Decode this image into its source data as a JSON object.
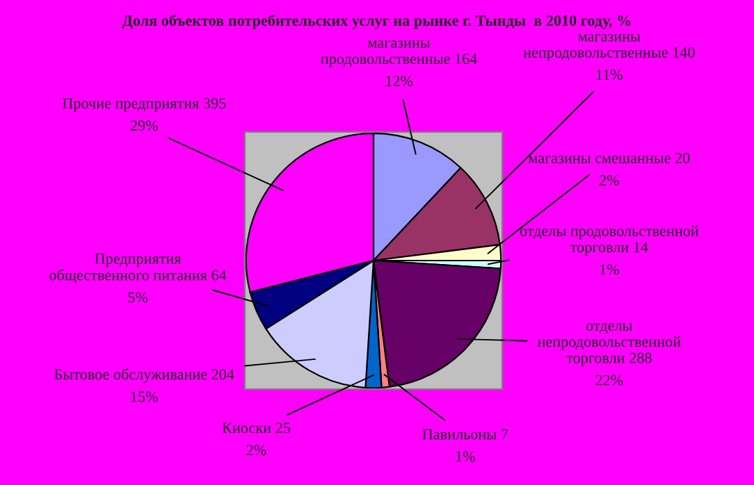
{
  "chart_data": {
    "type": "pie",
    "title": "Доля объектов потребительских услуг на рынке г. Тынды  в 2010 году, %",
    "categories": [
      "магазины продовольственные 164",
      "магазины непродовольственные 140",
      "магазины смешанные 20",
      "отделы продовольственной торговли 14",
      "отделы непродовольственной торговли 288",
      "Павильоны 7",
      "Киоски 25",
      "Бытовое обслуживание 204",
      "Предприятия общественного питания 64",
      "Прочие предприятия 395"
    ],
    "values": [
      12,
      11,
      2,
      1,
      22,
      1,
      2,
      15,
      5,
      29
    ],
    "colors": [
      "#9999ff",
      "#993366",
      "#ffffcc",
      "#ccffff",
      "#660066",
      "#ff8080",
      "#0066cc",
      "#ccccff",
      "#000080",
      "#ff00ff"
    ],
    "value_labels": [
      "12%",
      "11%",
      "2%",
      "1%",
      "22%",
      "1%",
      "2%",
      "15%",
      "5%",
      "29%"
    ]
  }
}
